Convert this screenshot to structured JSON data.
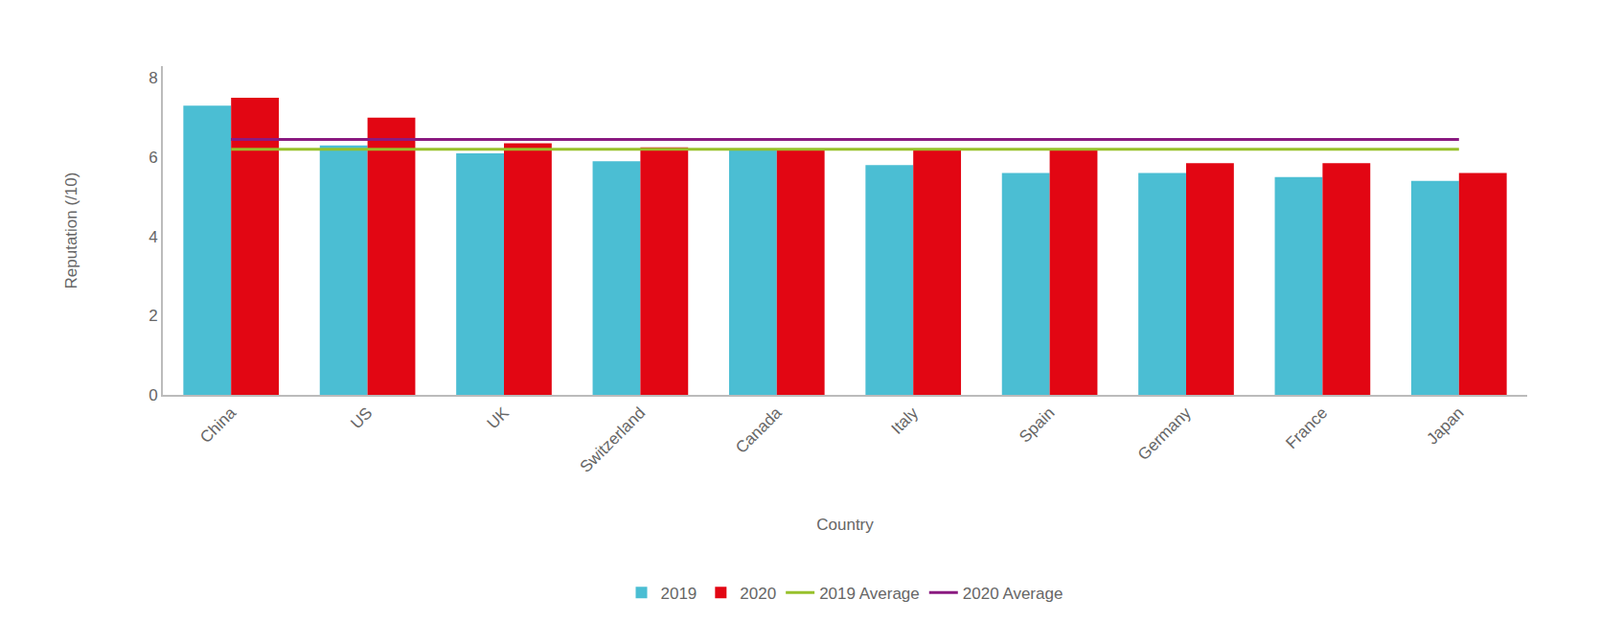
{
  "chart_data": {
    "type": "bar",
    "x_label": "Country",
    "y_label": "Reputation (/10)",
    "categories": [
      "China",
      "US",
      "UK",
      "Switzerland",
      "Canada",
      "Italy",
      "Spain",
      "Germany",
      "France",
      "Japan"
    ],
    "series": [
      {
        "name": "2019",
        "type": "bar",
        "color": "#4bbed3",
        "values": [
          7.3,
          6.3,
          6.1,
          5.9,
          6.2,
          5.8,
          5.6,
          5.6,
          5.5,
          5.4
        ]
      },
      {
        "name": "2020",
        "type": "bar",
        "color": "#e20613",
        "values": [
          7.5,
          7.0,
          6.35,
          6.25,
          6.2,
          6.2,
          6.2,
          5.85,
          5.85,
          5.6
        ]
      },
      {
        "name": "2019 Average",
        "type": "line",
        "color": "#97c12b",
        "values": [
          6.2,
          6.2,
          6.2,
          6.2,
          6.2,
          6.2,
          6.2,
          6.2,
          6.2,
          6.2
        ]
      },
      {
        "name": "2020 Average",
        "type": "line",
        "color": "#8a1a80",
        "values": [
          6.45,
          6.45,
          6.45,
          6.45,
          6.45,
          6.45,
          6.45,
          6.45,
          6.45,
          6.45
        ]
      }
    ],
    "ylim": [
      0,
      8.3
    ],
    "yticks": [
      0,
      2,
      4,
      6,
      8
    ],
    "grid": false,
    "legend": "bottom"
  }
}
